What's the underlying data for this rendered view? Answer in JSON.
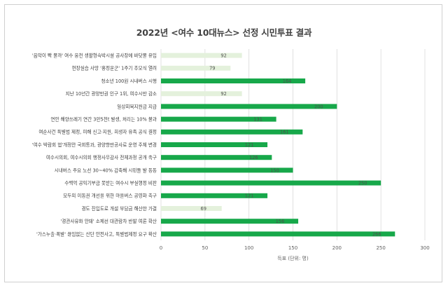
{
  "chart_data": {
    "type": "bar",
    "orientation": "horizontal",
    "title": "2022년 <여수 10대뉴스> 선정 시민투표 결과",
    "xlabel": "득표 (단위: 명)",
    "xlim": [
      0,
      300
    ],
    "xticks": [
      "0",
      "50",
      "100",
      "150",
      "200",
      "250",
      "300"
    ],
    "grid": true,
    "categories": [
      "'음악이 빡 물까' 여수 웅천 생활형숙박시설 공사장에 바닷물 유입",
      "현장실습 사망 '홍정운군' 1주기 추모식 열려",
      "청소년 100원 시내버스 시행",
      "지난 10년간 광양만권 인구 1위, 여수시만 감소",
      "일상회복지원금 지급",
      "연안 해양쓰레기 연간 3만5천t 발생, 처리는 10% 불과",
      "여순사건 특별법 제정, 피해 신고·지원, 희생자 유족 공식 결정",
      "'여수 박람회 법'개정안 국회통과, 광양항만공사로 운영 주체 변경",
      "여수시의회, 여수시의회 행정사무감사 전체과정 공개 촉구",
      "시내버스 주요 노선 30~40% 감축해 시민들 발 동동",
      "수백억 공익기부금 못받는 여수시 부실행정 비판",
      "모두의 이동권 개선을 위한 마을버스 공영화 촉구",
      "경도 진입도로 개설 부담금 해산한 가결",
      "'경관사유화 안돼' 소제선 대관람차 반발 여론 확산",
      "'가스누출·폭발' 끊임없는 산단 안전사고, 특별법제정 요구 확산"
    ],
    "values": [
      92,
      79,
      164,
      92,
      200,
      131,
      161,
      121,
      126,
      150,
      250,
      121,
      69,
      156,
      266
    ],
    "highlighted": [
      false,
      false,
      true,
      false,
      true,
      true,
      true,
      true,
      true,
      true,
      true,
      true,
      false,
      true,
      true
    ],
    "colors": {
      "highlight": "#17a84a",
      "normal": "#e4f1dc",
      "grid": "#d9d9d9",
      "text": "#404040"
    }
  }
}
